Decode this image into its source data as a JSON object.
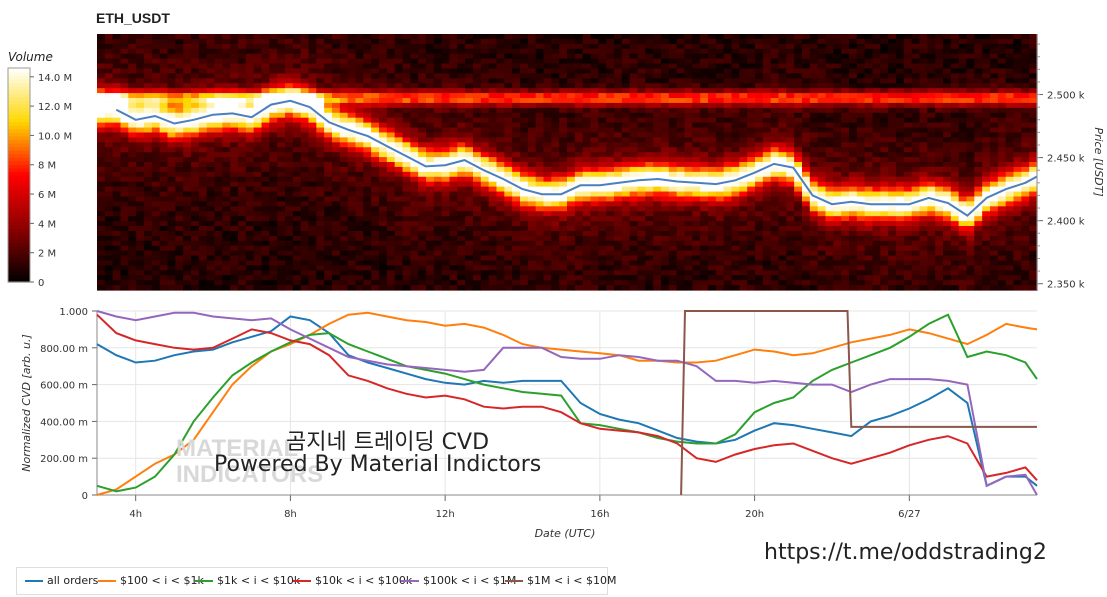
{
  "chart_data": [
    {
      "type": "heatmap",
      "title": "ETH_USDT",
      "ylabel": "Price [USDT]",
      "yticks": [
        "2.500 k",
        "2.450 k",
        "2.400 k",
        "2.350 k"
      ],
      "ytick_values": [
        2500,
        2450,
        2400,
        2350
      ],
      "ylim": [
        2345,
        2548
      ],
      "colorbar": {
        "label": "Volume",
        "ticks": [
          "14.0 M",
          "12.0 M",
          "10.0 M",
          "8 M",
          "6 M",
          "4 M",
          "2 M",
          "0"
        ],
        "tick_values": [
          14,
          12,
          10,
          8,
          6,
          4,
          2,
          0
        ],
        "range": [
          0,
          14.6
        ],
        "colors": [
          "#000000",
          "#8b0000",
          "#ff0000",
          "#ffd700",
          "#ffffff"
        ]
      },
      "price_line": {
        "color": "#4a7fc0",
        "x": [
          3.5,
          4.0,
          4.5,
          5.0,
          5.5,
          6.0,
          6.5,
          7.0,
          7.5,
          8.0,
          8.5,
          9.0,
          9.5,
          10.0,
          10.5,
          11.0,
          11.5,
          12.0,
          12.5,
          13.0,
          13.5,
          14.0,
          14.5,
          15.0,
          15.5,
          16.0,
          16.5,
          17.0,
          17.5,
          18.0,
          18.5,
          19.0,
          19.5,
          20.0,
          20.5,
          21.0,
          21.5,
          22.0,
          22.5,
          23.0,
          23.5,
          24.0,
          24.5,
          25.0,
          25.5,
          26.0,
          26.5,
          27.0,
          27.3
        ],
        "y": [
          2488,
          2480,
          2483,
          2477,
          2480,
          2484,
          2485,
          2482,
          2492,
          2495,
          2490,
          2478,
          2472,
          2467,
          2459,
          2451,
          2443,
          2444,
          2448,
          2440,
          2433,
          2425,
          2421,
          2421,
          2428,
          2428,
          2430,
          2432,
          2433,
          2431,
          2430,
          2429,
          2432,
          2438,
          2445,
          2442,
          2420,
          2413,
          2415,
          2413,
          2413,
          2413,
          2418,
          2414,
          2404,
          2418,
          2425,
          2430,
          2435
        ]
      }
    },
    {
      "type": "line",
      "xlabel": "Date (UTC)",
      "ylabel": "Normalized CVD [arb. u.]",
      "xticks": [
        "4h",
        "8h",
        "12h",
        "16h",
        "20h",
        "6/27"
      ],
      "xtick_values": [
        4,
        8,
        12,
        16,
        20,
        24
      ],
      "xlim": [
        3.0,
        27.3
      ],
      "yticks": [
        "0",
        "200.00 m",
        "400.00 m",
        "600.00 m",
        "800.00 m",
        "1.000"
      ],
      "ytick_values": [
        0,
        0.2,
        0.4,
        0.6,
        0.8,
        1.0
      ],
      "ylim": [
        0,
        1.0
      ],
      "grid": true,
      "x": [
        3.0,
        3.5,
        4.0,
        4.5,
        5.0,
        5.5,
        6.0,
        6.5,
        7.0,
        7.5,
        8.0,
        8.5,
        9.0,
        9.5,
        10.0,
        10.5,
        11.0,
        11.5,
        12.0,
        12.5,
        13.0,
        13.5,
        14.0,
        14.5,
        15.0,
        15.5,
        16.0,
        16.5,
        17.0,
        17.5,
        18.0,
        18.5,
        19.0,
        19.5,
        20.0,
        20.5,
        21.0,
        21.5,
        22.0,
        22.5,
        23.0,
        23.5,
        24.0,
        24.5,
        25.0,
        25.5,
        26.0,
        26.5,
        27.0,
        27.3
      ],
      "series": [
        {
          "name": "all orders",
          "color": "#1f77b4",
          "values": [
            0.82,
            0.76,
            0.72,
            0.73,
            0.76,
            0.78,
            0.79,
            0.83,
            0.86,
            0.89,
            0.97,
            0.95,
            0.88,
            0.76,
            0.72,
            0.69,
            0.66,
            0.63,
            0.61,
            0.6,
            0.62,
            0.61,
            0.62,
            0.62,
            0.62,
            0.5,
            0.44,
            0.41,
            0.39,
            0.35,
            0.31,
            0.29,
            0.28,
            0.3,
            0.35,
            0.39,
            0.38,
            0.36,
            0.34,
            0.32,
            0.4,
            0.43,
            0.47,
            0.52,
            0.58,
            0.5,
            0.05,
            0.1,
            0.1,
            0.05
          ]
        },
        {
          "name": "$100 < i < $1k",
          "color": "#ff7f0e",
          "values": [
            0.0,
            0.03,
            0.1,
            0.17,
            0.22,
            0.3,
            0.45,
            0.6,
            0.7,
            0.78,
            0.82,
            0.87,
            0.93,
            0.98,
            0.99,
            0.97,
            0.95,
            0.94,
            0.92,
            0.93,
            0.91,
            0.87,
            0.82,
            0.8,
            0.79,
            0.78,
            0.77,
            0.76,
            0.73,
            0.73,
            0.72,
            0.72,
            0.73,
            0.76,
            0.79,
            0.78,
            0.76,
            0.77,
            0.8,
            0.83,
            0.85,
            0.87,
            0.9,
            0.88,
            0.85,
            0.82,
            0.87,
            0.93,
            0.91,
            0.9
          ]
        },
        {
          "name": "$1k < i < $10k",
          "color": "#2ca02c",
          "values": [
            0.05,
            0.02,
            0.04,
            0.1,
            0.22,
            0.4,
            0.53,
            0.65,
            0.72,
            0.78,
            0.83,
            0.87,
            0.88,
            0.82,
            0.78,
            0.74,
            0.7,
            0.68,
            0.66,
            0.63,
            0.6,
            0.58,
            0.56,
            0.55,
            0.54,
            0.39,
            0.38,
            0.36,
            0.34,
            0.31,
            0.29,
            0.28,
            0.28,
            0.33,
            0.45,
            0.5,
            0.53,
            0.62,
            0.68,
            0.72,
            0.76,
            0.8,
            0.86,
            0.93,
            0.98,
            0.75,
            0.78,
            0.76,
            0.72,
            0.63
          ]
        },
        {
          "name": "$10k < i < $100k",
          "color": "#d62728",
          "values": [
            0.98,
            0.88,
            0.84,
            0.82,
            0.8,
            0.79,
            0.8,
            0.85,
            0.9,
            0.88,
            0.84,
            0.82,
            0.76,
            0.65,
            0.62,
            0.58,
            0.55,
            0.53,
            0.54,
            0.52,
            0.48,
            0.47,
            0.48,
            0.48,
            0.45,
            0.39,
            0.36,
            0.35,
            0.34,
            0.32,
            0.28,
            0.2,
            0.18,
            0.22,
            0.25,
            0.27,
            0.28,
            0.24,
            0.2,
            0.17,
            0.2,
            0.23,
            0.27,
            0.3,
            0.32,
            0.28,
            0.1,
            0.12,
            0.15,
            0.08
          ]
        },
        {
          "name": "$100k < i < $1M",
          "color": "#9467bd",
          "values": [
            1.0,
            0.97,
            0.95,
            0.97,
            0.99,
            0.99,
            0.97,
            0.96,
            0.95,
            0.96,
            0.9,
            0.85,
            0.8,
            0.75,
            0.73,
            0.71,
            0.7,
            0.69,
            0.68,
            0.67,
            0.68,
            0.8,
            0.8,
            0.8,
            0.75,
            0.74,
            0.74,
            0.76,
            0.75,
            0.73,
            0.73,
            0.7,
            0.62,
            0.62,
            0.61,
            0.62,
            0.61,
            0.6,
            0.6,
            0.56,
            0.6,
            0.63,
            0.63,
            0.63,
            0.62,
            0.6,
            0.05,
            0.1,
            0.11,
            0.0
          ]
        },
        {
          "name": "$1M < i < $10M",
          "color": "#8c564b",
          "values": [
            null,
            null,
            null,
            null,
            null,
            null,
            null,
            null,
            null,
            null,
            null,
            null,
            null,
            null,
            null,
            null,
            null,
            null,
            null,
            null,
            null,
            null,
            null,
            null,
            null,
            null,
            null,
            null,
            null,
            null,
            1.0,
            1.0,
            1.0,
            1.0,
            1.0,
            1.0,
            1.0,
            1.0,
            0.37,
            0.37,
            0.37,
            0.37,
            0.37,
            0.37,
            0.37,
            0.37,
            0.37,
            0.37,
            0.37,
            0.37
          ],
          "step_points": [
            [
              18.1,
              0.0
            ],
            [
              18.2,
              1.0
            ],
            [
              22.4,
              1.0
            ],
            [
              22.5,
              0.37
            ],
            [
              27.3,
              0.37
            ]
          ]
        }
      ],
      "legend_position": "bottom-left"
    }
  ],
  "overlay": {
    "line1": "곰지네 트레이딩 CVD",
    "line2": "Powered By Material Indictors",
    "link": "https://t.me/oddstrading2"
  },
  "watermark": {
    "line1": "MATERIAL",
    "line2": "INDICATORS"
  }
}
